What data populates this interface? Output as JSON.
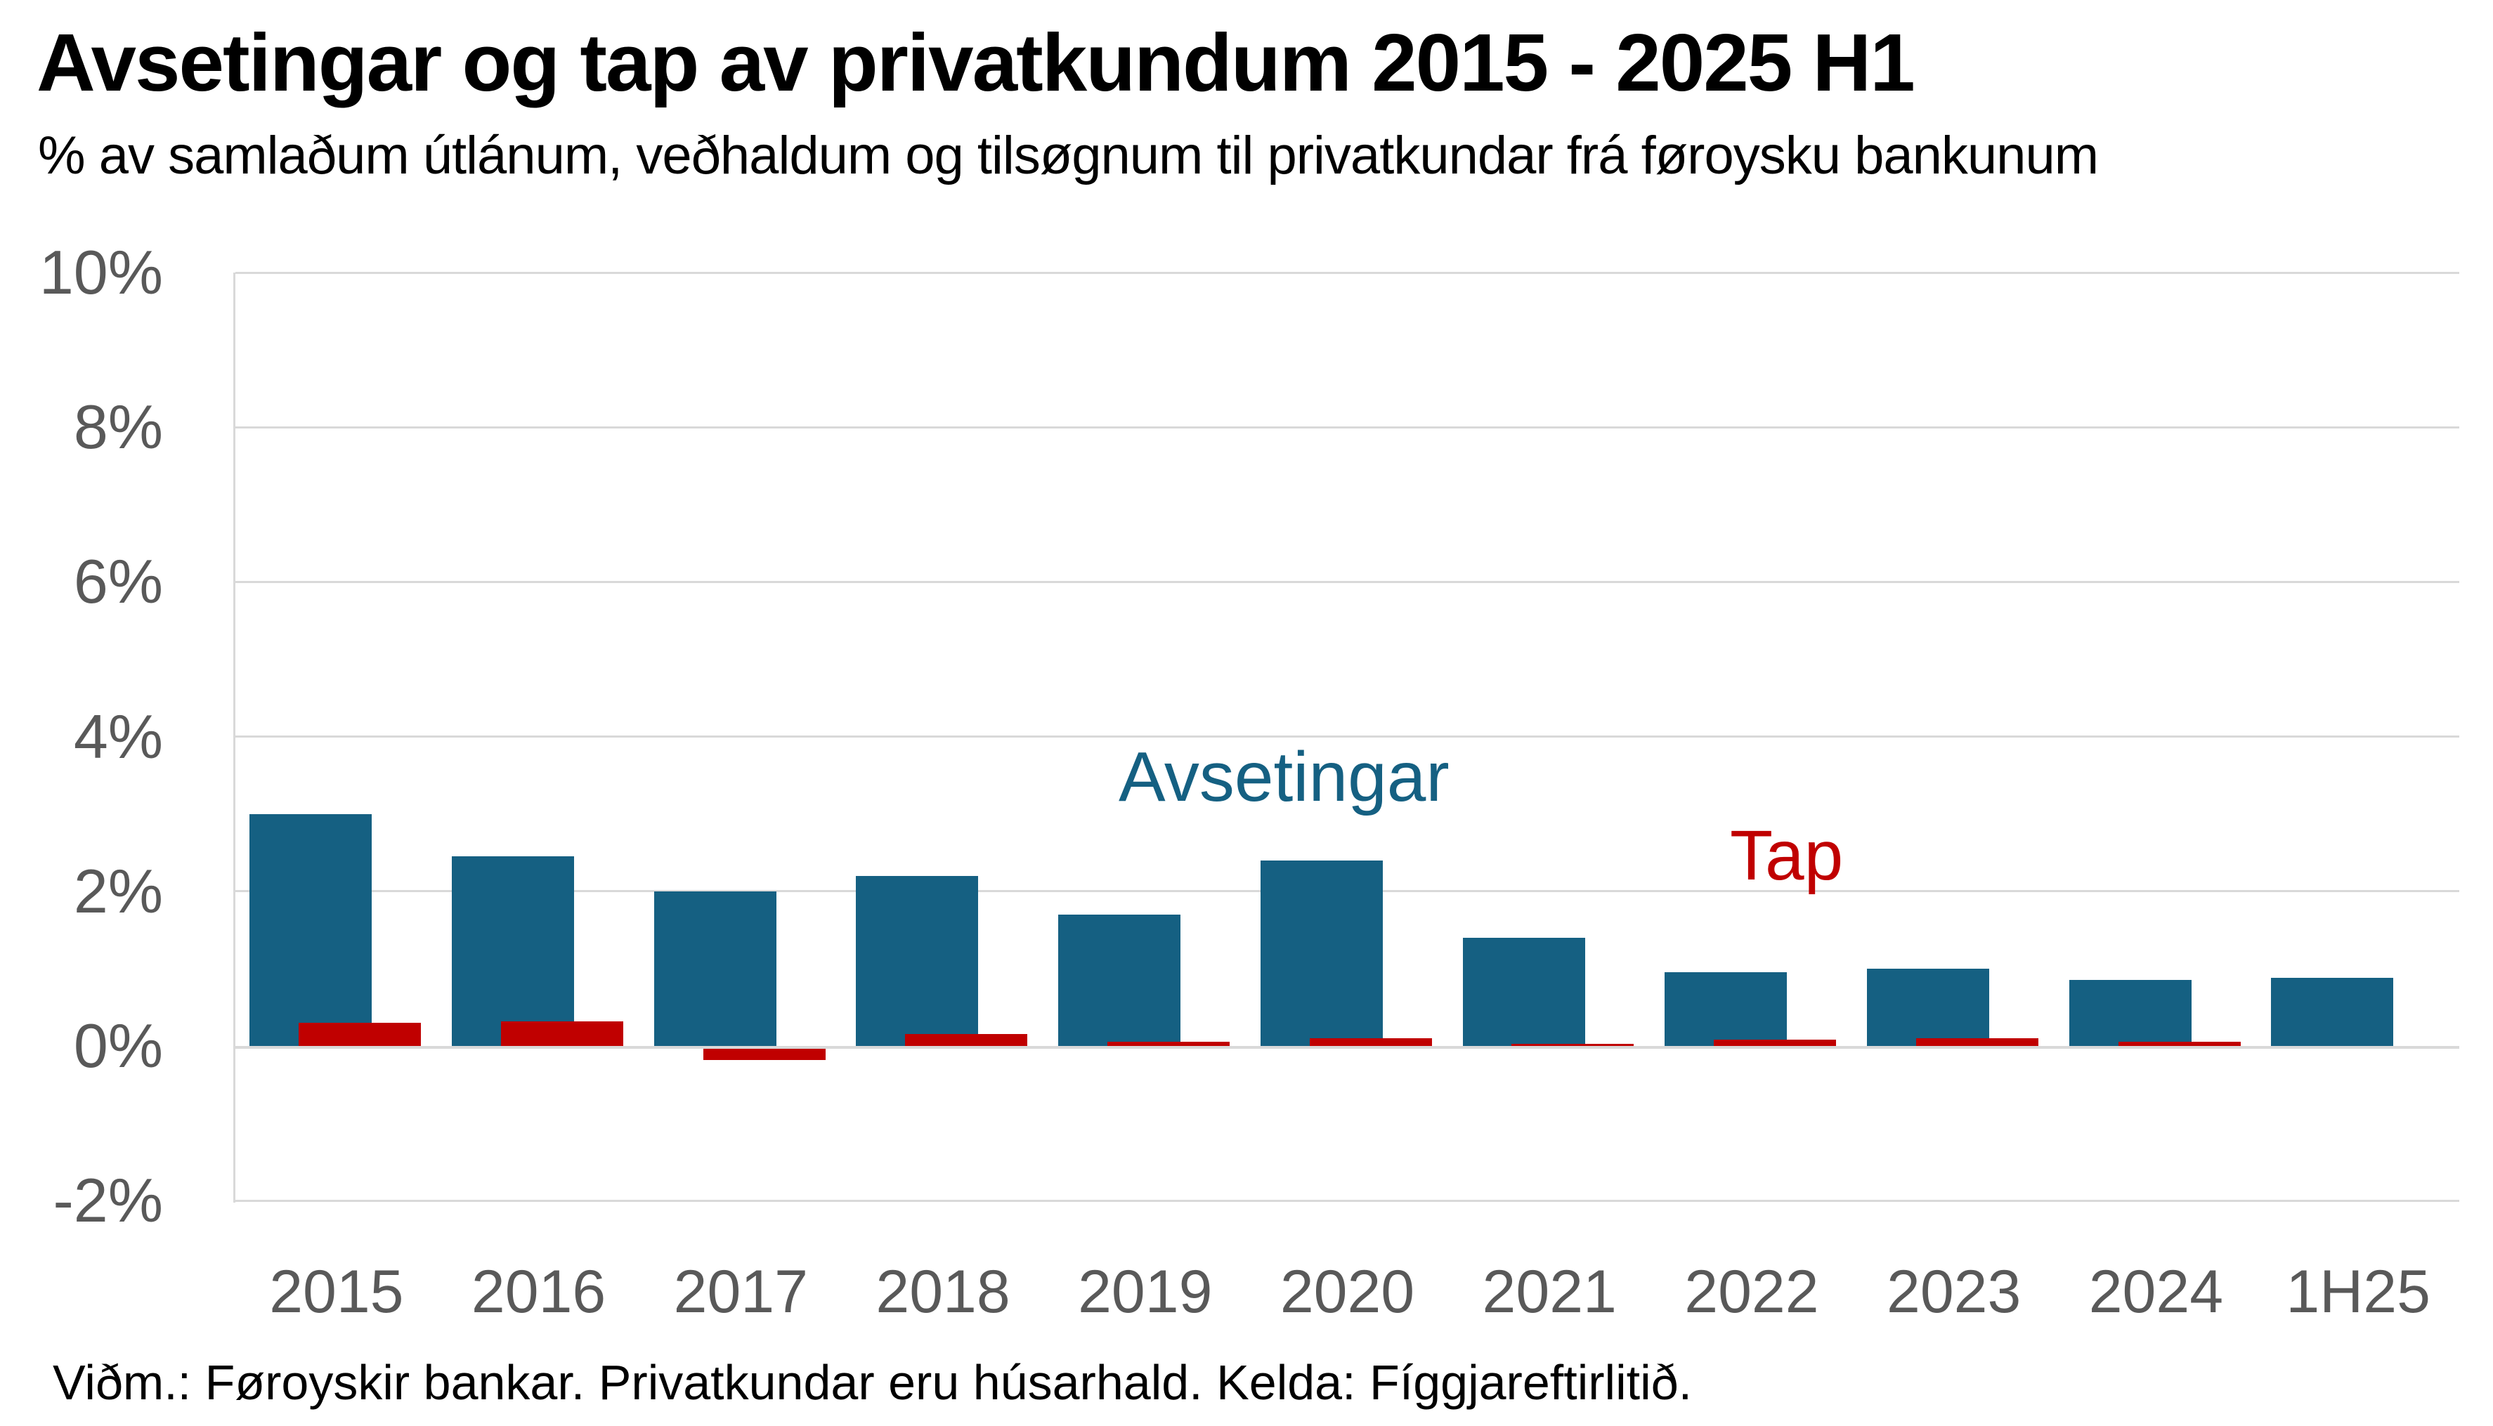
{
  "header": {
    "title": "Avsetingar og tap av privatkundum 2015 - 2025 H1",
    "subtitle": "% av samlaðum útlánum, veðhaldum og tilsøgnum til privatkundar frá føroysku bankunum"
  },
  "footer": {
    "note": "Viðm.: Føroyskir bankar. Privatkundar eru húsarhald. Kelda: Fíggjareftirlitið."
  },
  "chart_data": {
    "type": "bar",
    "title": "Avsetingar og tap av privatkundum 2015 - 2025 H1",
    "subtitle": "% av samlaðum útlánum, veðhaldum og tilsøgnum til privatkundar frá føroysku bankunum",
    "categories": [
      "2015",
      "2016",
      "2017",
      "2018",
      "2019",
      "2020",
      "2021",
      "2022",
      "2023",
      "2024",
      "1H25"
    ],
    "series": [
      {
        "name": "Avsetingar",
        "color": "#156082",
        "values": [
          3.0,
          2.45,
          2.0,
          2.2,
          1.7,
          2.4,
          1.4,
          0.95,
          1.0,
          0.85,
          0.88
        ]
      },
      {
        "name": "Tap",
        "color": "#c00000",
        "values": [
          0.3,
          0.32,
          -0.15,
          0.15,
          0.05,
          0.1,
          0.03,
          0.08,
          0.1,
          0.05,
          0.0
        ]
      }
    ],
    "xlabel": "",
    "ylabel": "",
    "ylim": [
      -2,
      10
    ],
    "yticks": [
      {
        "value": 10,
        "label": "10%"
      },
      {
        "value": 8,
        "label": "8%"
      },
      {
        "value": 6,
        "label": "6%"
      },
      {
        "value": 4,
        "label": "4%"
      },
      {
        "value": 2,
        "label": "2%"
      },
      {
        "value": 0,
        "label": "0%"
      },
      {
        "value": -2,
        "label": "-2%"
      }
    ],
    "grid": "horizontal",
    "legend_position": "inline-labels",
    "style": {
      "gridline_color": "#d9d9d9",
      "axis_label_color": "#595959",
      "background": "#ffffff"
    }
  }
}
